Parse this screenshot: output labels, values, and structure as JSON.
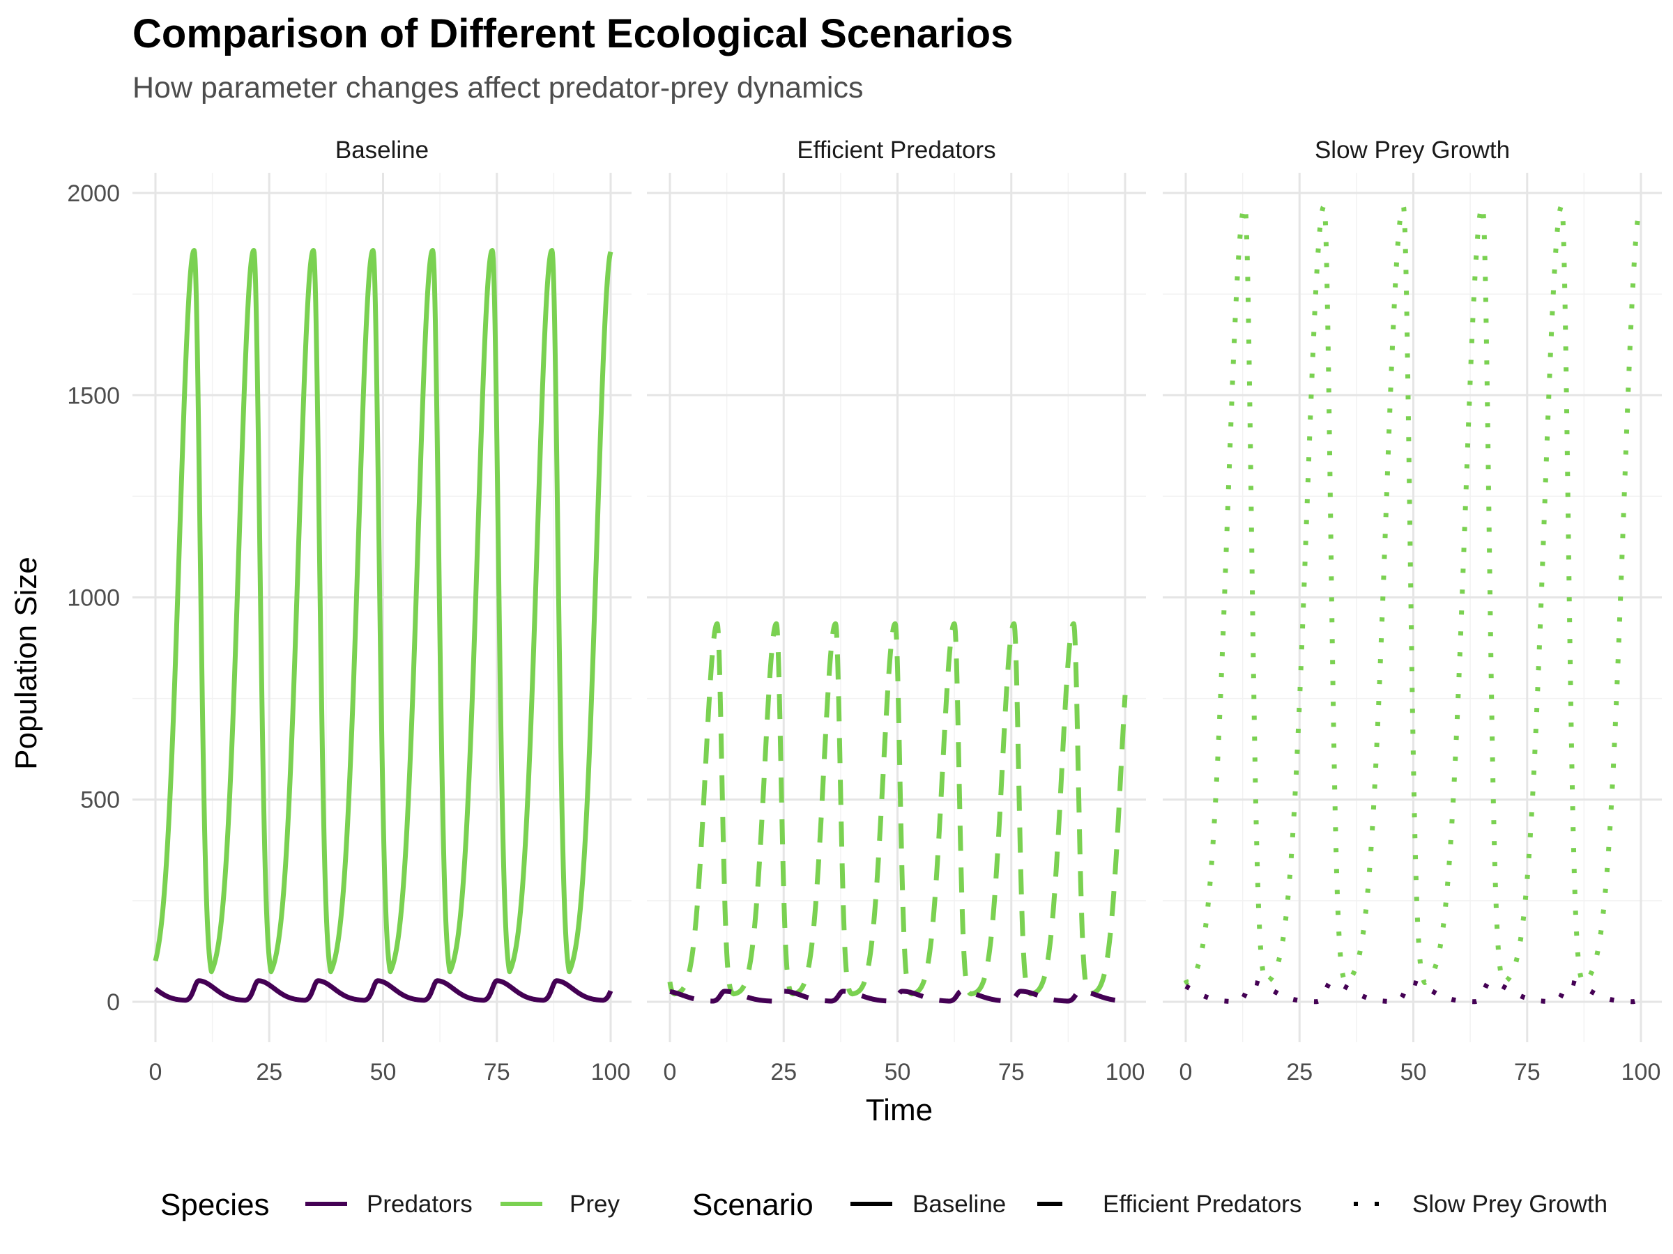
{
  "chart_data": {
    "type": "line",
    "title": "Comparison of Different Ecological Scenarios",
    "subtitle": "How parameter changes affect predator-prey dynamics",
    "xlabel": "Time",
    "ylabel": "Population Size",
    "xlim": [
      0,
      100
    ],
    "ylim": [
      -100,
      2050
    ],
    "x_ticks": [
      0,
      25,
      50,
      75,
      100
    ],
    "y_ticks": [
      0,
      500,
      1000,
      1500,
      2000
    ],
    "x_tick_labels": [
      "0",
      "25",
      "50",
      "75",
      "100"
    ],
    "y_tick_labels": [
      "0",
      "500",
      "1000",
      "1500",
      "2000"
    ],
    "grid": true,
    "legend_position": "bottom",
    "legend": {
      "species_title": "Species",
      "species": [
        {
          "name": "Predators",
          "color": "#440154"
        },
        {
          "name": "Prey",
          "color": "#7ad151"
        }
      ],
      "scenario_title": "Scenario",
      "scenarios": [
        {
          "name": "Baseline",
          "linetype": "solid"
        },
        {
          "name": "Efficient Predators",
          "linetype": "dashed"
        },
        {
          "name": "Slow Prey Growth",
          "linetype": "dotted"
        }
      ]
    },
    "panels": [
      {
        "name": "Baseline",
        "linetype": "solid",
        "prey": {
          "min": 48,
          "max": 1858,
          "peak_times": [
            8.5,
            21.6,
            34.7,
            47.8,
            60.9,
            74.0,
            87.1,
            100.2
          ],
          "rise_width": 3.2,
          "fall_width": 1.3
        },
        "predators": {
          "min": 3,
          "max": 52,
          "peak_times": [
            9.5,
            22.6,
            35.7,
            48.8,
            61.9,
            75.0,
            88.1,
            101.2
          ],
          "rise_width": 1.0,
          "fall_width": 3.5
        }
      },
      {
        "name": "Efficient Predators",
        "linetype": "dashed",
        "prey": {
          "min": 18,
          "max": 935,
          "peak_times": [
            10.4,
            23.4,
            36.4,
            49.5,
            62.5,
            75.6,
            88.7,
            101.7
          ],
          "rise_width": 2.6,
          "fall_width": 1.0
        },
        "predators": {
          "min": 1,
          "max": 26,
          "peak_times": [
            12.0,
            25.0,
            38.0,
            51.0,
            64.0,
            77.0,
            90.0,
            103.0
          ],
          "rise_width": 0.9,
          "fall_width": 3.8
        }
      },
      {
        "name": "Slow Prey Growth",
        "linetype": "dotted",
        "prey": {
          "min": 40,
          "max": 1968,
          "peak_times": [
            13.0,
            30.4,
            47.8,
            65.2,
            82.6,
            100.0
          ],
          "rise_width": 3.8,
          "fall_width": 1.4
        },
        "predators": {
          "min": 0,
          "max": 48,
          "peak_times": [
            14.4,
            31.8,
            49.2,
            66.6,
            84.0,
            101.4
          ],
          "rise_width": 1.0,
          "fall_width": 4.5
        }
      }
    ]
  }
}
